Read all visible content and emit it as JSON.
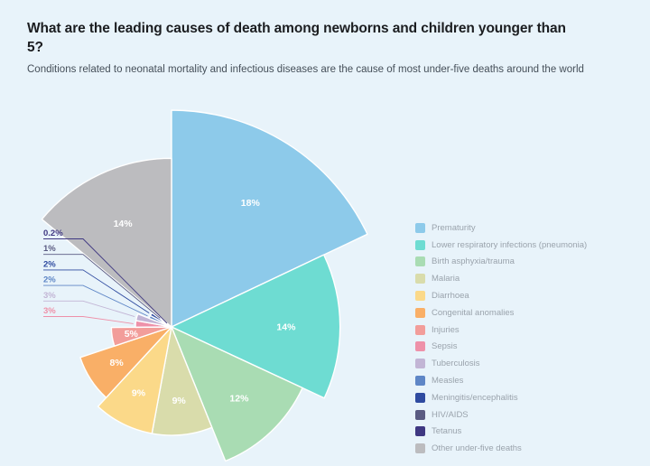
{
  "header": {
    "title": "What are the leading causes of death among newborns and children younger than 5?",
    "subtitle": "Conditions related to neonatal mortality and infectious diseases are the cause of most under-five deaths around the world"
  },
  "colors": {
    "background": "#e8f3fa",
    "title_text": "#1b1d20",
    "subtitle_text": "#454f59",
    "legend_text": "#9aa3ac",
    "slice_label_text": "#ffffff",
    "slice_separator": "#ffffff"
  },
  "chart_data": {
    "type": "pie",
    "variant": "nightingale-rose (angle and radius proportional to value)",
    "title": "What are the leading causes of death among newborns and children younger than 5?",
    "subtitle": "Conditions related to neonatal mortality and infectious diseases are the cause of most under-five deaths around the world",
    "unit": "%",
    "legend_position": "right",
    "start_angle_deg": 0,
    "grid": false,
    "series": [
      {
        "label": "Prematurity",
        "value": 18,
        "display": "18%",
        "color": "#8dcaea",
        "label_placement": "inside"
      },
      {
        "label": "Lower respiratory infections (pneumonia)",
        "value": 14,
        "display": "14%",
        "color": "#6edcd2",
        "label_placement": "inside"
      },
      {
        "label": "Birth asphyxia/trauma",
        "value": 12,
        "display": "12%",
        "color": "#a9dcb3",
        "label_placement": "inside"
      },
      {
        "label": "Malaria",
        "value": 9,
        "display": "9%",
        "color": "#d9dcab",
        "label_placement": "inside"
      },
      {
        "label": "Diarrhoea",
        "value": 9,
        "display": "9%",
        "color": "#fbd989",
        "label_placement": "inside"
      },
      {
        "label": "Congenital anomalies",
        "value": 8,
        "display": "8%",
        "color": "#f9af67",
        "label_placement": "inside"
      },
      {
        "label": "Injuries",
        "value": 5,
        "display": "5%",
        "color": "#f29d9a",
        "label_placement": "inside"
      },
      {
        "label": "Sepsis",
        "value": 3,
        "display": "3%",
        "color": "#ee91a9",
        "label_placement": "leader"
      },
      {
        "label": "Tuberculosis",
        "value": 3,
        "display": "3%",
        "color": "#c2b5d5",
        "label_placement": "leader"
      },
      {
        "label": "Measles",
        "value": 2,
        "display": "2%",
        "color": "#5e86c6",
        "label_placement": "leader"
      },
      {
        "label": "Meningitis/encephalitis",
        "value": 2,
        "display": "2%",
        "color": "#2f4ba0",
        "label_placement": "leader"
      },
      {
        "label": "HIV/AIDS",
        "value": 1,
        "display": "1%",
        "color": "#5a5b82",
        "label_placement": "leader"
      },
      {
        "label": "Tetanus",
        "value": 0.2,
        "display": "0.2%",
        "color": "#3f3882",
        "label_placement": "leader"
      },
      {
        "label": "Other under-five deaths",
        "value": 14,
        "display": "14%",
        "color": "#bcbcbf",
        "label_placement": "inside"
      }
    ]
  }
}
